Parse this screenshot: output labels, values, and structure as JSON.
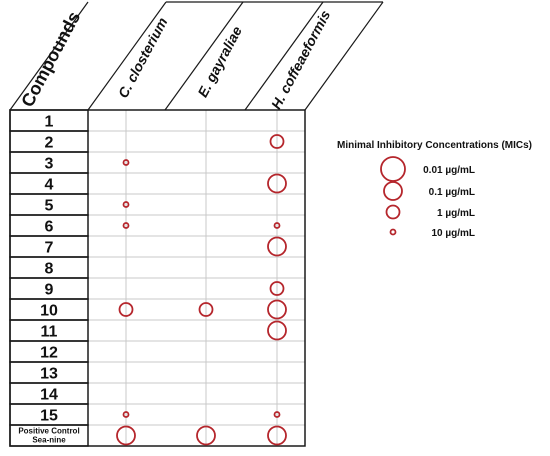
{
  "chart_data": {
    "type": "scatter",
    "header_label": "Compounds",
    "columns": [
      "C. closterium",
      "E. gayraliae",
      "H. coffeaeformis"
    ],
    "rows": [
      "1",
      "2",
      "3",
      "4",
      "5",
      "6",
      "7",
      "8",
      "9",
      "10",
      "11",
      "12",
      "13",
      "14",
      "15",
      "Positive Control\nSea-nine"
    ],
    "legend_title": "Minimal Inhibitory Concentrations (MICs)",
    "legend": [
      {
        "label": "0.01 µg/mL",
        "mic": 0.01
      },
      {
        "label": "0.1 µg/mL",
        "mic": 0.1
      },
      {
        "label": "1 µg/mL",
        "mic": 1
      },
      {
        "label": "10 µg/mL",
        "mic": 10
      }
    ],
    "points": [
      {
        "compound": "2",
        "organism": "H. coffeaeformis",
        "mic": 1
      },
      {
        "compound": "3",
        "organism": "C. closterium",
        "mic": 10
      },
      {
        "compound": "4",
        "organism": "H. coffeaeformis",
        "mic": 0.1
      },
      {
        "compound": "5",
        "organism": "C. closterium",
        "mic": 10
      },
      {
        "compound": "6",
        "organism": "C. closterium",
        "mic": 10
      },
      {
        "compound": "6",
        "organism": "H. coffeaeformis",
        "mic": 10
      },
      {
        "compound": "7",
        "organism": "H. coffeaeformis",
        "mic": 0.1
      },
      {
        "compound": "9",
        "organism": "H. coffeaeformis",
        "mic": 1
      },
      {
        "compound": "10",
        "organism": "C. closterium",
        "mic": 1
      },
      {
        "compound": "10",
        "organism": "E. gayraliae",
        "mic": 1
      },
      {
        "compound": "10",
        "organism": "H. coffeaeformis",
        "mic": 0.1
      },
      {
        "compound": "11",
        "organism": "H. coffeaeformis",
        "mic": 0.1
      },
      {
        "compound": "15",
        "organism": "C. closterium",
        "mic": 10
      },
      {
        "compound": "15",
        "organism": "H. coffeaeformis",
        "mic": 10
      },
      {
        "compound": "Positive Control\nSea-nine",
        "organism": "C. closterium",
        "mic": 0.1
      },
      {
        "compound": "Positive Control\nSea-nine",
        "organism": "E. gayraliae",
        "mic": 0.1
      },
      {
        "compound": "Positive Control\nSea-nine",
        "organism": "H. coffeaeformis",
        "mic": 0.1
      }
    ],
    "colors": {
      "marker": "#b5262c",
      "grid": "#c8c8c8",
      "border": "#1a1a1a"
    }
  }
}
